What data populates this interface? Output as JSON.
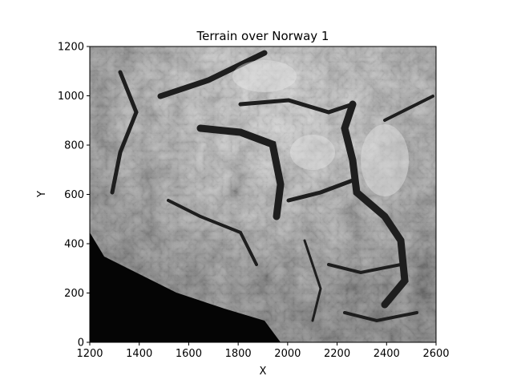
{
  "chart_data": {
    "type": "heatmap",
    "title": "Terrain over Norway 1",
    "xlabel": "X",
    "ylabel": "Y",
    "xlim": [
      1200,
      2600
    ],
    "ylim": [
      0,
      1200
    ],
    "xticks": [
      "1200",
      "1400",
      "1600",
      "1800",
      "2000",
      "2200",
      "2400",
      "2600"
    ],
    "yticks": [
      "0",
      "200",
      "400",
      "600",
      "800",
      "1000",
      "1200"
    ],
    "colormap": "gray",
    "grid": false,
    "legend": "none"
  }
}
